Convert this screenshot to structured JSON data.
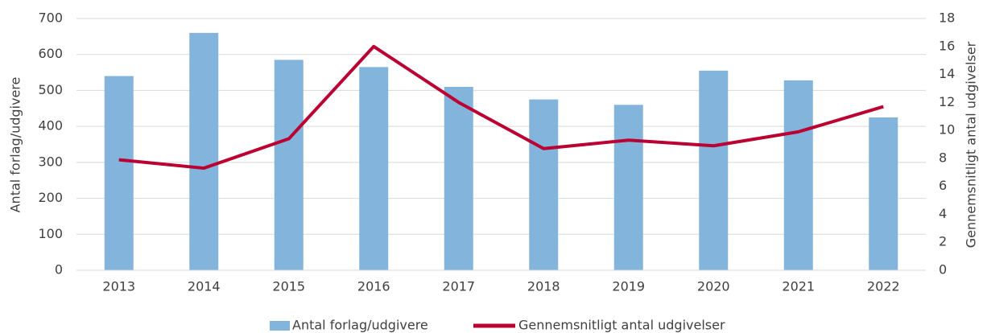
{
  "chart_data": {
    "type": "bar",
    "categories": [
      "2013",
      "2014",
      "2015",
      "2016",
      "2017",
      "2018",
      "2019",
      "2020",
      "2021",
      "2022"
    ],
    "series": [
      {
        "name": "Antal forlag/udgivere",
        "type": "bar",
        "color": "#83b4dc",
        "axis": "y",
        "values": [
          540,
          660,
          585,
          565,
          510,
          475,
          460,
          555,
          528,
          425
        ]
      },
      {
        "name": "Gennemsnitligt antal udgivelser",
        "type": "line",
        "color": "#bb0032",
        "axis": "y2",
        "values": [
          7.9,
          7.3,
          9.4,
          16.0,
          12.0,
          8.7,
          9.3,
          8.9,
          9.9,
          11.7
        ]
      }
    ],
    "ylabel": "Antal forlag/udgivere",
    "y2label": "Gennemsnitligt antal udgivelser",
    "ylim": [
      0,
      700
    ],
    "yticks": [
      0,
      100,
      200,
      300,
      400,
      500,
      600,
      700
    ],
    "y2lim": [
      0,
      18
    ],
    "y2ticks": [
      0,
      2,
      4,
      6,
      8,
      10,
      12,
      14,
      16,
      18
    ],
    "grid": true,
    "legend": "bottom"
  }
}
